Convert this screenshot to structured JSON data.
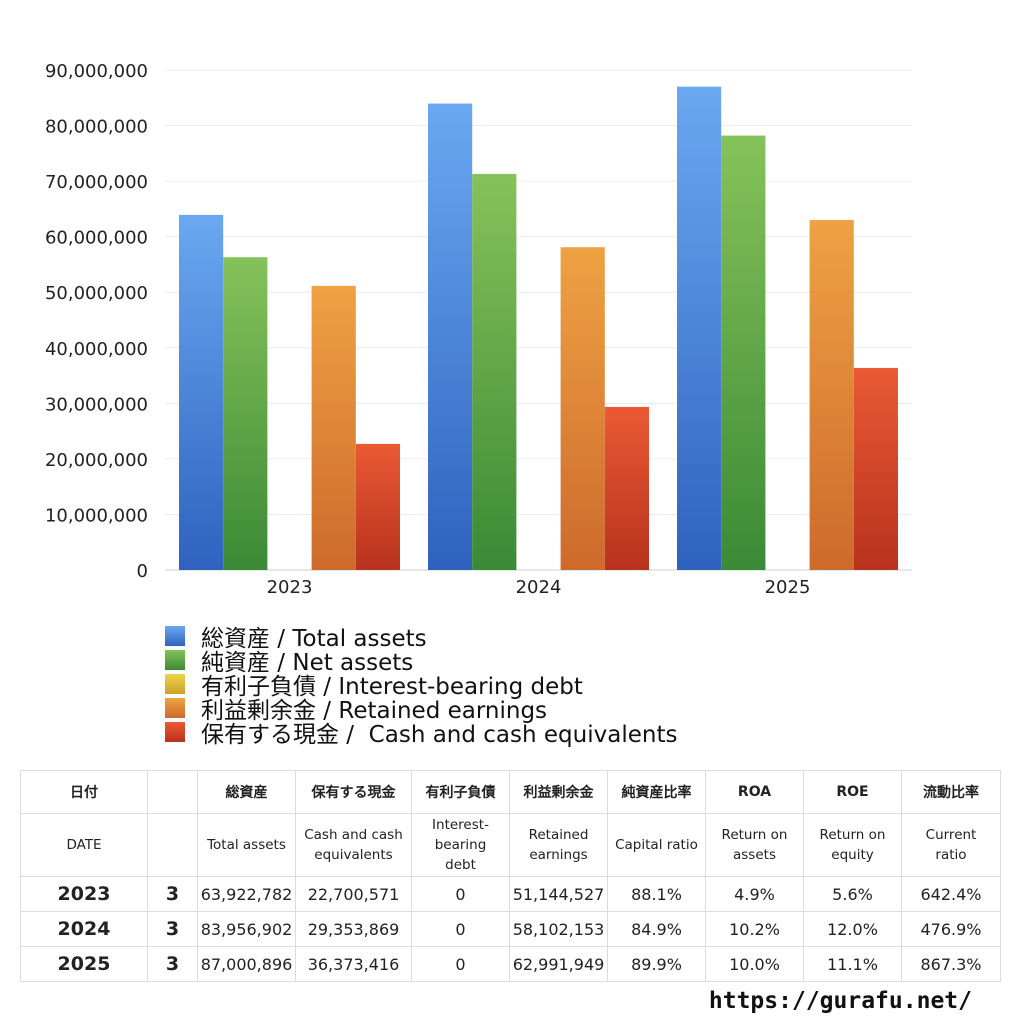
{
  "chart_data": {
    "type": "bar",
    "categories": [
      "2023",
      "2024",
      "2025"
    ],
    "ylim": [
      0,
      90000000
    ],
    "yticks": [
      0,
      10000000,
      20000000,
      30000000,
      40000000,
      50000000,
      60000000,
      70000000,
      80000000,
      90000000
    ],
    "ytick_labels": [
      "0",
      "10,000,000",
      "20,000,000",
      "30,000,000",
      "40,000,000",
      "50,000,000",
      "60,000,000",
      "70,000,000",
      "80,000,000",
      "90,000,000"
    ],
    "grid": true,
    "legend_position": "bottom",
    "series": [
      {
        "name": "総資産 / Total assets",
        "values": [
          63922782,
          83956902,
          87000896
        ],
        "color_top": "#6aa8f0",
        "color_bottom": "#2f62bf"
      },
      {
        "name": "純資産 / Net assets",
        "values": [
          56300000,
          71300000,
          78200000
        ],
        "color_top": "#86c25a",
        "color_bottom": "#3b8a36"
      },
      {
        "name": "有利子負債 / Interest-bearing debt",
        "values": [
          0,
          0,
          0
        ],
        "color_top": "#f0d24a",
        "color_bottom": "#c9a22a"
      },
      {
        "name": "利益剰余金 / Retained earnings",
        "values": [
          51144527,
          58102153,
          62991949
        ],
        "color_top": "#eea243",
        "color_bottom": "#cd6a2c"
      },
      {
        "name": "保有する現金 /  Cash and cash equivalents",
        "values": [
          22700571,
          29353869,
          36373416
        ],
        "color_top": "#ea5a34",
        "color_bottom": "#b8321e"
      }
    ]
  },
  "table": {
    "header_ja": [
      "日付",
      "",
      "総資産",
      "保有する現金",
      "有利子負債",
      "利益剰余金",
      "純資産比率",
      "ROA",
      "ROE",
      "流動比率"
    ],
    "header_en": [
      "DATE",
      "",
      "Total assets",
      "Cash and cash\nequivalents",
      "Interest-\nbearing\ndebt",
      "Retained\nearnings",
      "Capital ratio",
      "Return on\nassets",
      "Return on\nequity",
      "Current\nratio"
    ],
    "rows": [
      [
        "2023",
        "3",
        "63,922,782",
        "22,700,571",
        "0",
        "51,144,527",
        "88.1%",
        "4.9%",
        "5.6%",
        "642.4%"
      ],
      [
        "2024",
        "3",
        "83,956,902",
        "29,353,869",
        "0",
        "58,102,153",
        "84.9%",
        "10.2%",
        "12.0%",
        "476.9%"
      ],
      [
        "2025",
        "3",
        "87,000,896",
        "36,373,416",
        "0",
        "62,991,949",
        "89.9%",
        "10.0%",
        "11.1%",
        "867.3%"
      ]
    ]
  },
  "source": "https://gurafu.net/"
}
